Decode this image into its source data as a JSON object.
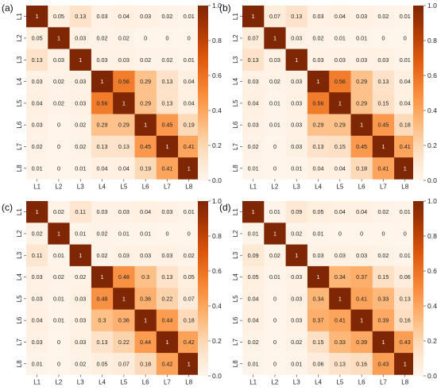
{
  "chart_data": [
    {
      "type": "heatmap",
      "panel_label": "(a)",
      "x_categories": [
        "L1",
        "L2",
        "L3",
        "L4",
        "L5",
        "L6",
        "L7",
        "L8"
      ],
      "y_categories": [
        "L1",
        "L2",
        "L3",
        "L4",
        "L5",
        "L6",
        "L7",
        "L8"
      ],
      "values": [
        [
          1,
          0.05,
          0.13,
          0.03,
          0.04,
          0.03,
          0.02,
          0.01
        ],
        [
          0.05,
          1,
          0.03,
          0.02,
          0.02,
          0,
          0,
          0
        ],
        [
          0.13,
          0.03,
          1,
          0.03,
          0.03,
          0.02,
          0.02,
          0.01
        ],
        [
          0.03,
          0.02,
          0.03,
          1,
          0.56,
          0.29,
          0.13,
          0.04
        ],
        [
          0.04,
          0.02,
          0.03,
          0.56,
          1,
          0.29,
          0.13,
          0.04
        ],
        [
          0.03,
          0,
          0.02,
          0.29,
          0.29,
          1,
          0.45,
          0.19
        ],
        [
          0.02,
          0,
          0.02,
          0.13,
          0.13,
          0.45,
          1,
          0.41
        ],
        [
          0.01,
          0,
          0.01,
          0.04,
          0.04,
          0.19,
          0.41,
          1
        ]
      ],
      "colorbar": {
        "range": [
          0,
          1
        ],
        "ticks": [
          "0.0",
          "0.2",
          "0.4",
          "0.6",
          "0.8",
          "1.0"
        ]
      }
    },
    {
      "type": "heatmap",
      "panel_label": "(b)",
      "x_categories": [
        "L1",
        "L2",
        "L3",
        "L4",
        "L5",
        "L6",
        "L7",
        "L8"
      ],
      "y_categories": [
        "L1",
        "L2",
        "L3",
        "L4",
        "L5",
        "L6",
        "L7",
        "L8"
      ],
      "values": [
        [
          1,
          0.07,
          0.13,
          0.03,
          0.04,
          0.03,
          0.02,
          0.01
        ],
        [
          0.07,
          1,
          0.03,
          0.02,
          0.01,
          0.01,
          0,
          0
        ],
        [
          0.13,
          0.03,
          1,
          0.03,
          0.03,
          0.03,
          0.03,
          0.01
        ],
        [
          0.03,
          0.02,
          0.03,
          1,
          0.56,
          0.29,
          0.13,
          0.04
        ],
        [
          0.04,
          0.01,
          0.03,
          0.56,
          1,
          0.29,
          0.15,
          0.04
        ],
        [
          0.03,
          0.01,
          0.03,
          0.29,
          0.29,
          1,
          0.45,
          0.18
        ],
        [
          0.02,
          0,
          0.03,
          0.13,
          0.15,
          0.45,
          1,
          0.41
        ],
        [
          0.01,
          0,
          0.01,
          0.04,
          0.04,
          0.18,
          0.41,
          1
        ]
      ],
      "colorbar": {
        "range": [
          0,
          1
        ],
        "ticks": [
          "0.0",
          "0.2",
          "0.4",
          "0.6",
          "0.8",
          "1.0"
        ]
      }
    },
    {
      "type": "heatmap",
      "panel_label": "(c)",
      "x_categories": [
        "L1",
        "L2",
        "L3",
        "L4",
        "L5",
        "L6",
        "L7",
        "L8"
      ],
      "y_categories": [
        "L1",
        "L2",
        "L3",
        "L4",
        "L5",
        "L6",
        "L7",
        "L8"
      ],
      "values": [
        [
          1,
          0.02,
          0.11,
          0.03,
          0.03,
          0.04,
          0.03,
          0.01
        ],
        [
          0.02,
          1,
          0.01,
          0.02,
          0.01,
          0.01,
          0,
          0
        ],
        [
          0.11,
          0.01,
          1,
          0.02,
          0.03,
          0.03,
          0.03,
          0.02
        ],
        [
          0.03,
          0.02,
          0.02,
          1,
          0.48,
          0.3,
          0.13,
          0.05
        ],
        [
          0.03,
          0.01,
          0.03,
          0.48,
          1,
          0.36,
          0.22,
          0.07
        ],
        [
          0.04,
          0.01,
          0.03,
          0.3,
          0.36,
          1,
          0.44,
          0.18
        ],
        [
          0.03,
          0,
          0.03,
          0.13,
          0.22,
          0.44,
          1,
          0.42
        ],
        [
          0.01,
          0,
          0.02,
          0.05,
          0.07,
          0.18,
          0.42,
          1
        ]
      ],
      "colorbar": {
        "range": [
          0,
          1
        ],
        "ticks": [
          "0.0",
          "0.2",
          "0.4",
          "0.6",
          "0.8",
          "1.0"
        ]
      }
    },
    {
      "type": "heatmap",
      "panel_label": "(d)",
      "x_categories": [
        "L1",
        "L2",
        "L3",
        "L4",
        "L5",
        "L6",
        "L7",
        "L8"
      ],
      "y_categories": [
        "L1",
        "L2",
        "L3",
        "L4",
        "L5",
        "L6",
        "L7",
        "L8"
      ],
      "values": [
        [
          1,
          0.01,
          0.09,
          0.05,
          0.04,
          0.04,
          0.02,
          0.01
        ],
        [
          0.01,
          1,
          0.02,
          0.01,
          0,
          0,
          0,
          0
        ],
        [
          0.09,
          0.02,
          1,
          0.03,
          0.03,
          0.03,
          0.02,
          0.01
        ],
        [
          0.05,
          0.01,
          0.03,
          1,
          0.34,
          0.37,
          0.15,
          0.06
        ],
        [
          0.04,
          0,
          0.03,
          0.34,
          1,
          0.41,
          0.33,
          0.13
        ],
        [
          0.04,
          0,
          0.03,
          0.37,
          0.41,
          1,
          0.39,
          0.16
        ],
        [
          0.02,
          0,
          0.02,
          0.15,
          0.33,
          0.39,
          1,
          0.43
        ],
        [
          0.01,
          0,
          0.01,
          0.06,
          0.13,
          0.16,
          0.43,
          1
        ]
      ],
      "colorbar": {
        "range": [
          0,
          1
        ],
        "ticks": [
          "0.0",
          "0.2",
          "0.4",
          "0.6",
          "0.8",
          "1.0"
        ]
      }
    }
  ]
}
